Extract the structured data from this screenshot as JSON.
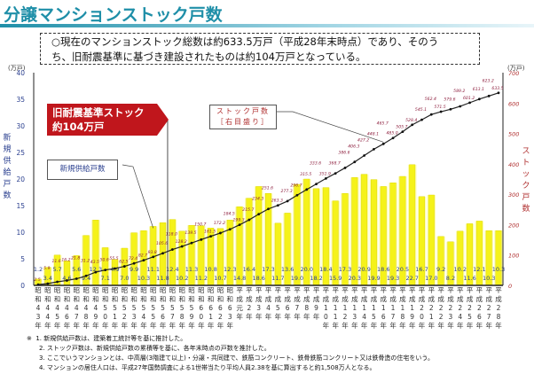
{
  "header": {
    "title": "分譲マンションストック戸数"
  },
  "summary": {
    "line1": "○現在のマンションストック総数は約633.5万戸（平成28年末時点）であり、そのう",
    "line2": "ち、旧耐震基準に基づき建設されたものは約104万戸となっている。"
  },
  "callouts": {
    "old_standard_line1": "旧耐震基準ストック",
    "old_standard_line2": "約104万戸",
    "stock_line1": "ストック戸数",
    "stock_line2": "［右目盛り］",
    "supply": "新規供給戸数"
  },
  "notes": {
    "mark": "※",
    "items": [
      "1. 新規供給戸数は、建築着工統計等を基に推計した。",
      "2. ストック戸数は、新規供給戸数の累積等を基に、各年末時点の戸数を推計した。",
      "3. ここでいうマンションとは、中高層(3階建て以上)・分譲・共同建で、鉄筋コンクリート、鉄骨鉄筋コンクリート又は鉄骨造の住宅をいう。",
      "4. マンションの居住人口は、平成27年国勢調査による1世帯当たり平均人員2.38を基に算出すると約1,508万人となる。"
    ]
  },
  "chart_data": {
    "type": "bar+line",
    "ylabel_left": "新規供給戸数",
    "ylabel_right": "ストック戸数",
    "unit_left": "(万戸)",
    "unit_right": "(万戸)",
    "ylim_left": [
      0,
      40
    ],
    "yticks_left": [
      0,
      5,
      10,
      15,
      20,
      25,
      30,
      35,
      40
    ],
    "ylim_right": [
      0,
      700
    ],
    "yticks_right": [
      0,
      100,
      200,
      300,
      400,
      500,
      600,
      700
    ],
    "grid": false,
    "categories": [
      [
        "昭",
        "和",
        "4",
        "3",
        "年"
      ],
      [
        "昭",
        "和",
        "4",
        "4",
        "年"
      ],
      [
        "昭",
        "和",
        "4",
        "5",
        "年"
      ],
      [
        "昭",
        "和",
        "4",
        "6",
        "年"
      ],
      [
        "昭",
        "和",
        "4",
        "7",
        "年"
      ],
      [
        "昭",
        "和",
        "4",
        "8",
        "年"
      ],
      [
        "昭",
        "和",
        "4",
        "9",
        "年"
      ],
      [
        "昭",
        "和",
        "5",
        "0",
        "年"
      ],
      [
        "昭",
        "和",
        "5",
        "1",
        "年"
      ],
      [
        "昭",
        "和",
        "5",
        "2",
        "年"
      ],
      [
        "昭",
        "和",
        "5",
        "3",
        "年"
      ],
      [
        "昭",
        "和",
        "5",
        "4",
        "年"
      ],
      [
        "昭",
        "和",
        "5",
        "5",
        "年"
      ],
      [
        "昭",
        "和",
        "5",
        "6",
        "年"
      ],
      [
        "昭",
        "和",
        "5",
        "7",
        "年"
      ],
      [
        "昭",
        "和",
        "5",
        "8",
        "年"
      ],
      [
        "昭",
        "和",
        "5",
        "9",
        "年"
      ],
      [
        "昭",
        "和",
        "6",
        "0",
        "年"
      ],
      [
        "昭",
        "和",
        "6",
        "1",
        "年"
      ],
      [
        "昭",
        "和",
        "6",
        "2",
        "年"
      ],
      [
        "昭",
        "和",
        "6",
        "3",
        "年"
      ],
      [
        "平",
        "成",
        "元",
        "年"
      ],
      [
        "平",
        "成",
        "2",
        "年"
      ],
      [
        "平",
        "成",
        "3",
        "年"
      ],
      [
        "平",
        "成",
        "4",
        "年"
      ],
      [
        "平",
        "成",
        "5",
        "年"
      ],
      [
        "平",
        "成",
        "6",
        "年"
      ],
      [
        "平",
        "成",
        "7",
        "年"
      ],
      [
        "平",
        "成",
        "8",
        "年"
      ],
      [
        "平",
        "成",
        "9",
        "年"
      ],
      [
        "平",
        "成",
        "1",
        "0",
        "年"
      ],
      [
        "平",
        "成",
        "1",
        "1",
        "年"
      ],
      [
        "平",
        "成",
        "1",
        "2",
        "年"
      ],
      [
        "平",
        "成",
        "1",
        "3",
        "年"
      ],
      [
        "平",
        "成",
        "1",
        "4",
        "年"
      ],
      [
        "平",
        "成",
        "1",
        "5",
        "年"
      ],
      [
        "平",
        "成",
        "1",
        "6",
        "年"
      ],
      [
        "平",
        "成",
        "1",
        "7",
        "年"
      ],
      [
        "平",
        "成",
        "1",
        "8",
        "年"
      ],
      [
        "平",
        "成",
        "1",
        "9",
        "年"
      ],
      [
        "平",
        "成",
        "2",
        "0",
        "年"
      ],
      [
        "平",
        "成",
        "2",
        "1",
        "年"
      ],
      [
        "平",
        "成",
        "2",
        "2",
        "年"
      ],
      [
        "平",
        "成",
        "2",
        "3",
        "年"
      ],
      [
        "平",
        "成",
        "2",
        "4",
        "年"
      ],
      [
        "平",
        "成",
        "2",
        "5",
        "年"
      ],
      [
        "平",
        "成",
        "2",
        "6",
        "年"
      ],
      [
        "平",
        "成",
        "2",
        "7",
        "年"
      ],
      [
        "平",
        "成",
        "2",
        "8",
        "年"
      ]
    ],
    "series": [
      {
        "name": "新規供給戸数",
        "kind": "bar",
        "axis": "left",
        "color": "#f5f21a",
        "values": [
          1.2,
          3.4,
          5.7,
          4.6,
          5.6,
          9.4,
          12.3,
          7.1,
          4.9,
          7.0,
          9.9,
          10.3,
          11.1,
          11.8,
          12.4,
          10.2,
          11.3,
          11.2,
          10.8,
          10.7,
          12.3,
          14.8,
          16.4,
          18.6,
          17.3,
          11.7,
          13.6,
          19.0,
          20.0,
          18.2,
          18.4,
          15.9,
          17.3,
          20.3,
          20.9,
          19.9,
          18.6,
          19.3,
          20.5,
          22.7,
          16.7,
          17.0,
          9.2,
          8.2,
          10.2,
          11.6,
          12.1,
          10.3,
          10.3
        ]
      },
      {
        "name": "ストック戸数",
        "kind": "line",
        "axis": "right",
        "color": "#222222",
        "label_color": "#8b1a3a",
        "values": [
          2.5,
          5.9,
          11.6,
          16.2,
          21.8,
          31.2,
          43.5,
          50.6,
          55.5,
          62.5,
          72.4,
          82.7,
          93.8,
          105.6,
          118.0,
          128.2,
          139.5,
          150.7,
          161.5,
          172.2,
          184.5,
          199.3,
          215.7,
          234.3,
          251.6,
          263.3,
          277.3,
          296.7,
          315.5,
          333.6,
          351.9,
          368.7,
          386.6,
          406.3,
          427.2,
          448.1,
          465.7,
          485.0,
          505.7,
          528.4,
          545.1,
          562.4,
          571.5,
          579.6,
          589.2,
          601.2,
          613.1,
          623.2,
          633.5
        ]
      }
    ],
    "old_standard_boundary": "昭和56年と昭和57年の間"
  }
}
